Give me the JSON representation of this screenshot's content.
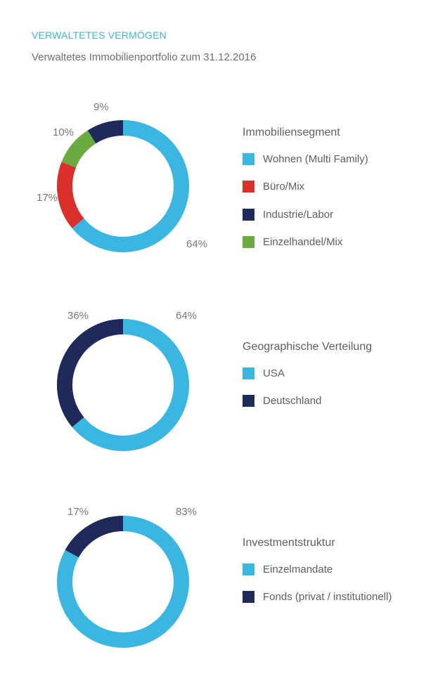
{
  "header": {
    "title": "VERWALTETES VERMÖGEN",
    "subtitle": "Verwaltetes Immobilienportfolio zum 31.12.2016"
  },
  "colors": {
    "accent": "#3ab6e0",
    "text": "#6d6e70"
  },
  "chart_data": [
    {
      "type": "pie",
      "legend_title": "Immobiliensegment",
      "slices": [
        {
          "label": "Wohnen (Multi Family)",
          "value": 64,
          "value_label": "64%",
          "color": "#3ab6e0"
        },
        {
          "label": "Büro/Mix",
          "value": 17,
          "value_label": "17%",
          "color": "#d9302b"
        },
        {
          "label": "Einzelhandel/Mix",
          "value": 10,
          "value_label": "10%",
          "color": "#6aaa3f"
        },
        {
          "label": "Industrie/Labor",
          "value": 9,
          "value_label": "9%",
          "color": "#1f2a5a"
        }
      ],
      "legend_order": [
        "Wohnen (Multi Family)",
        "Büro/Mix",
        "Industrie/Labor",
        "Einzelhandel/Mix"
      ]
    },
    {
      "type": "pie",
      "legend_title": "Geographische Verteilung",
      "slices": [
        {
          "label": "USA",
          "value": 64,
          "value_label": "64%",
          "color": "#3ab6e0"
        },
        {
          "label": "Deutschland",
          "value": 36,
          "value_label": "36%",
          "color": "#1f2a5a"
        }
      ],
      "legend_order": [
        "USA",
        "Deutschland"
      ]
    },
    {
      "type": "pie",
      "legend_title": "Investmentstruktur",
      "slices": [
        {
          "label": "Einzelmandate",
          "value": 83,
          "value_label": "83%",
          "color": "#3ab6e0"
        },
        {
          "label": "Fonds (privat / institutionell)",
          "value": 17,
          "value_label": "17%",
          "color": "#1f2a5a"
        }
      ],
      "legend_order": [
        "Einzelmandate",
        "Fonds (privat / institutionell)"
      ]
    }
  ]
}
